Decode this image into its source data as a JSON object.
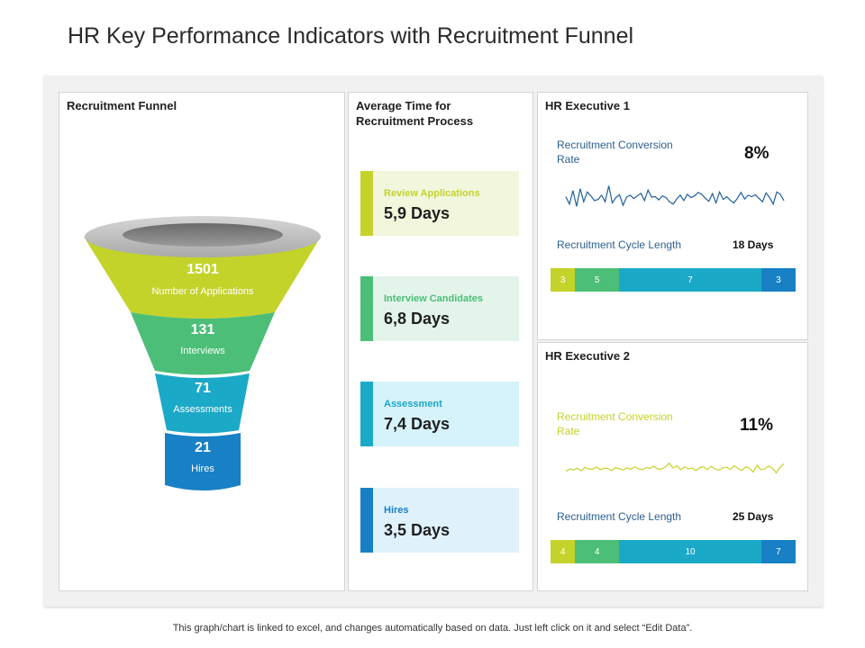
{
  "title": "HR Key Performance Indicators with Recruitment Funnel",
  "footer": "This graph/chart is linked to excel, and changes automatically based on data. Just left click on it and select “Edit Data”.",
  "colors": {
    "lime": "#c4d32a",
    "green": "#4cbe78",
    "teal": "#1ba9c8",
    "blue": "#1880c4"
  },
  "funnel": {
    "title": "Recruitment Funnel",
    "stages": [
      {
        "value": "1501",
        "label": "Number of Applications"
      },
      {
        "value": "131",
        "label": "Interviews"
      },
      {
        "value": "71",
        "label": "Assessments"
      },
      {
        "value": "21",
        "label": "Hires"
      }
    ]
  },
  "avg_time": {
    "title_line1": "Average Time for",
    "title_line2": "Recruitment Process",
    "items": [
      {
        "label": "Review Applications",
        "value": "5,9 Days"
      },
      {
        "label": "Interview Candidates",
        "value": "6,8 Days"
      },
      {
        "label": "Assessment",
        "value": "7,4 Days"
      },
      {
        "label": "Hires",
        "value": "3,5 Days"
      }
    ]
  },
  "exec1": {
    "title": "HR Executive 1",
    "conversion_label_line1": "Recruitment Conversion",
    "conversion_label_line2": "Rate",
    "conversion_value": "8%",
    "cycle_label": "Recruitment Cycle Length",
    "cycle_value": "18 Days"
  },
  "exec2": {
    "title": "HR Executive 2",
    "conversion_label_line1": "Recruitment Conversion",
    "conversion_label_line2": "Rate",
    "conversion_value": "11%",
    "cycle_label": "Recruitment Cycle Length",
    "cycle_value": "25 Days"
  },
  "chart_data": [
    {
      "type": "line",
      "title": "",
      "series": [
        {
          "values": [
            0.52,
            0.2,
            0.78,
            0.1,
            0.86,
            0.3,
            0.72,
            0.55,
            0.35,
            0.4,
            0.58,
            0.3,
            0.98,
            0.25,
            0.48,
            0.6,
            0.15,
            0.5,
            0.58,
            0.44,
            0.55,
            0.66,
            0.35,
            0.8,
            0.5,
            0.52,
            0.38,
            0.55,
            0.48,
            0.3,
            0.2,
            0.42,
            0.58,
            0.35,
            0.62,
            0.48,
            0.55,
            0.7,
            0.62,
            0.45,
            0.32,
            0.65,
            0.25,
            0.72,
            0.4,
            0.52,
            0.36,
            0.25,
            0.45,
            0.7,
            0.42,
            0.58,
            0.52,
            0.6,
            0.45,
            0.3,
            0.68,
            0.48,
            0.2,
            0.72,
            0.62,
            0.35
          ]
        }
      ],
      "color": "#1f5f9a"
    },
    {
      "type": "bar",
      "title": "",
      "categories": [
        "",
        "",
        "",
        ""
      ],
      "values": [
        3,
        5,
        7,
        3
      ],
      "display_fractions": [
        0.1,
        0.18,
        0.58,
        0.14
      ],
      "colors": [
        "#c4d32a",
        "#4cbe78",
        "#1ba9c8",
        "#1880c4"
      ]
    },
    {
      "type": "line",
      "title": "",
      "series": [
        {
          "values": [
            0.35,
            0.5,
            0.42,
            0.55,
            0.38,
            0.6,
            0.5,
            0.48,
            0.62,
            0.45,
            0.55,
            0.52,
            0.4,
            0.58,
            0.5,
            0.44,
            0.56,
            0.48,
            0.62,
            0.5,
            0.45,
            0.58,
            0.52,
            0.66,
            0.48,
            0.5,
            0.62,
            0.85,
            0.55,
            0.7,
            0.45,
            0.62,
            0.5,
            0.55,
            0.4,
            0.58,
            0.62,
            0.45,
            0.66,
            0.5,
            0.42,
            0.55,
            0.6,
            0.48,
            0.7,
            0.52,
            0.4,
            0.62,
            0.55,
            0.3,
            0.72,
            0.45,
            0.5,
            0.68,
            0.55,
            0.25,
            0.6,
            0.82
          ]
        }
      ],
      "color": "#c4d32a"
    },
    {
      "type": "bar",
      "title": "",
      "categories": [
        "",
        "",
        "",
        ""
      ],
      "values": [
        4,
        4,
        10,
        7
      ],
      "display_fractions": [
        0.1,
        0.18,
        0.58,
        0.14
      ],
      "colors": [
        "#c4d32a",
        "#4cbe78",
        "#1ba9c8",
        "#1880c4"
      ]
    }
  ]
}
